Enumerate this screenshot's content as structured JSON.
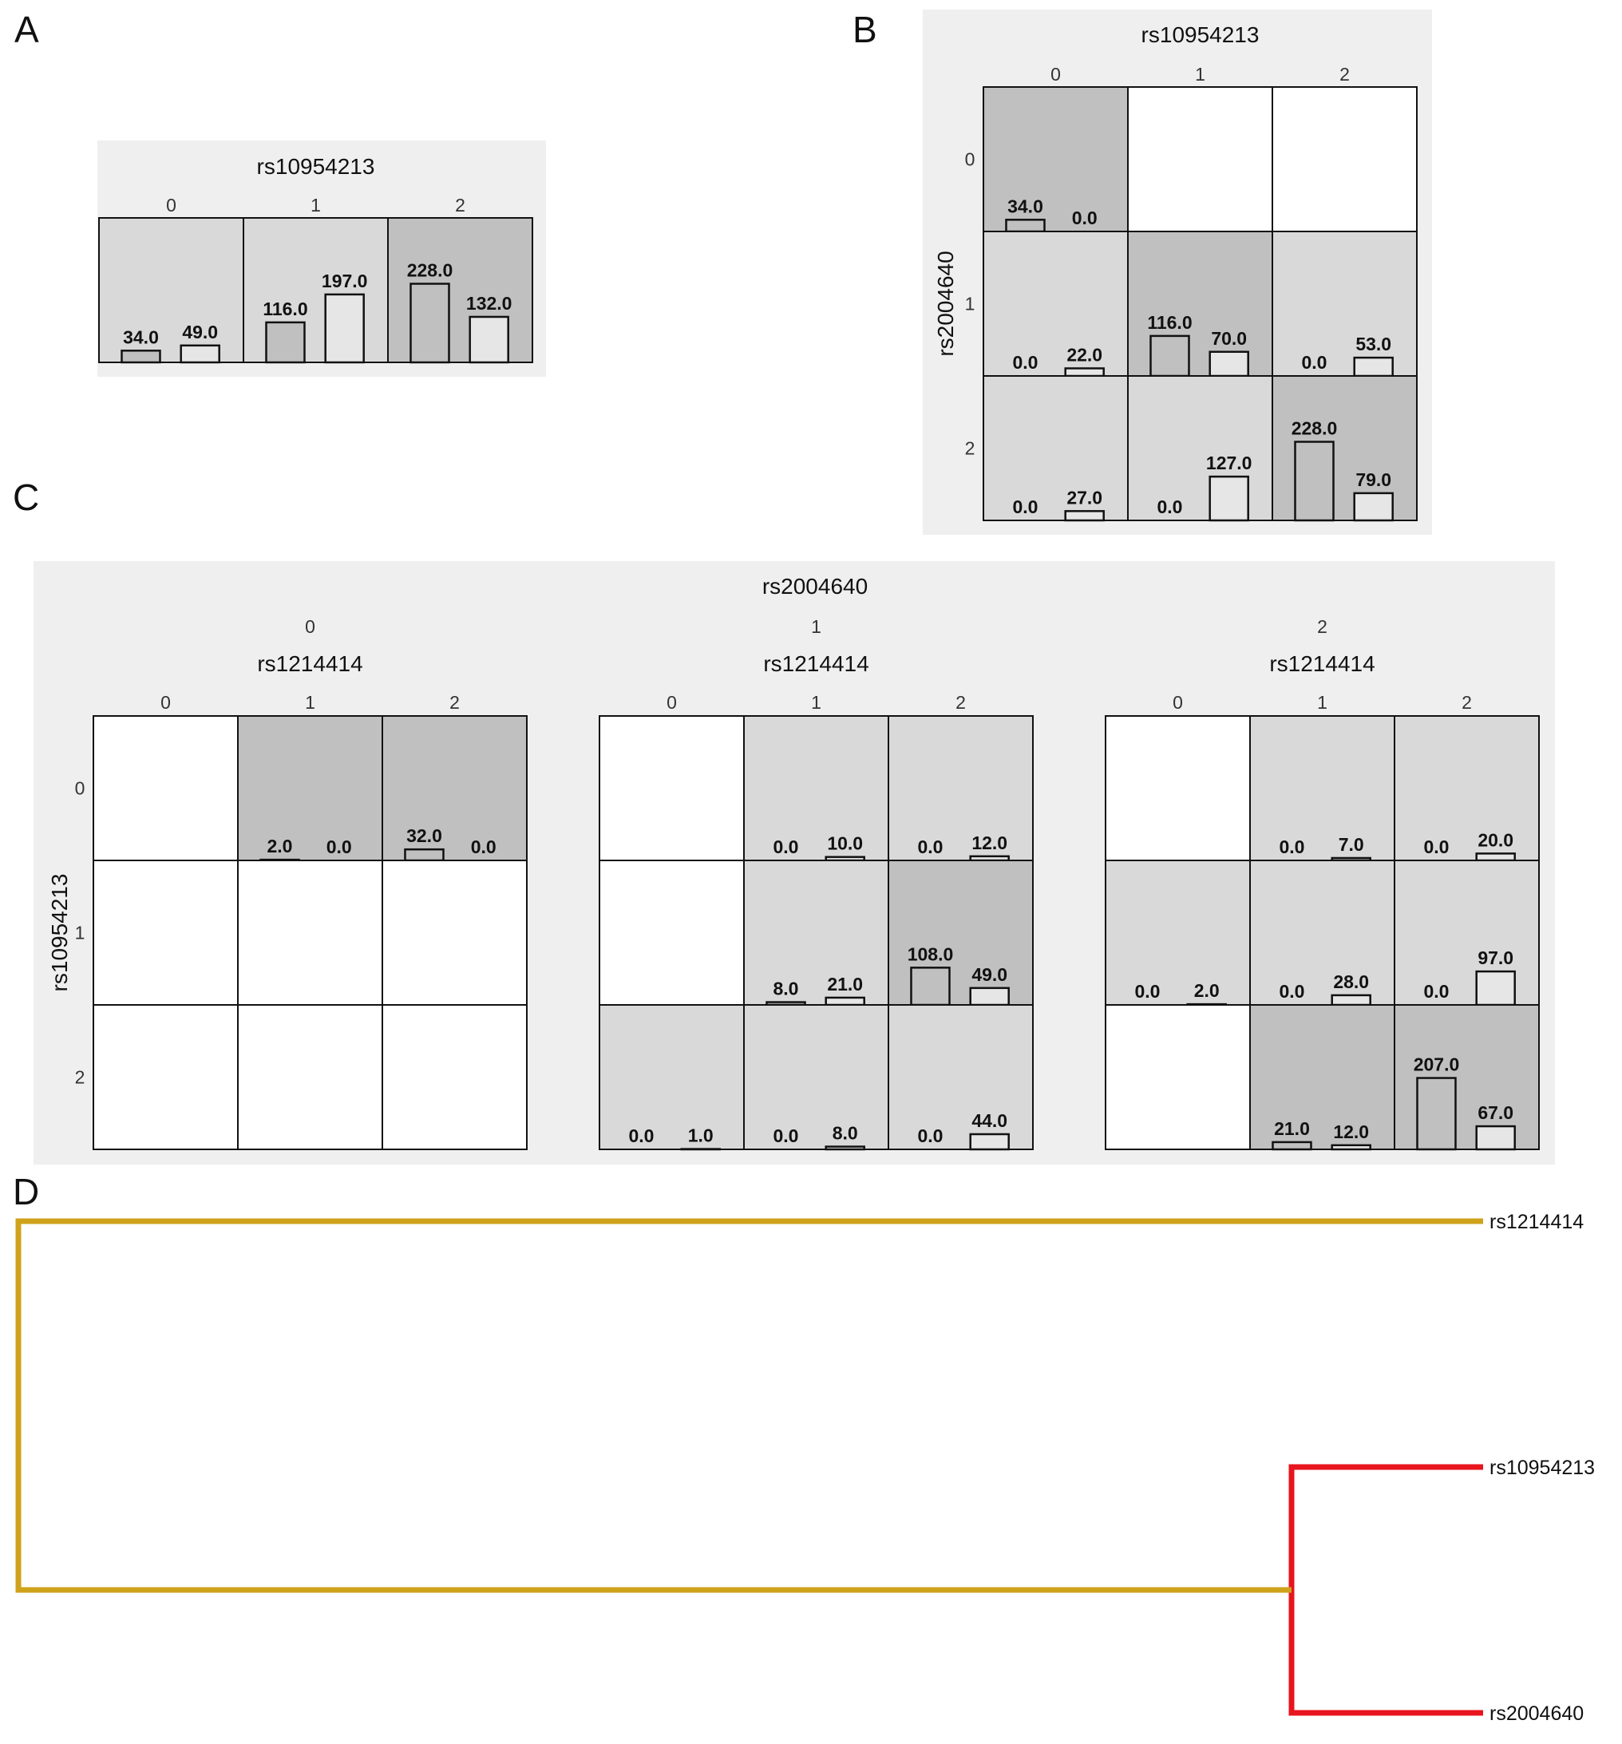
{
  "panels": {
    "a": "A",
    "b": "B",
    "c": "C",
    "d": "D"
  },
  "chart_data": [
    {
      "panel": "A",
      "type": "bar",
      "title": "rs10954213",
      "col_ticks": [
        "0",
        "1",
        "2"
      ],
      "cells": [
        {
          "col": 0,
          "shade": "low",
          "values": [
            34.0,
            49.0
          ],
          "labels": [
            "34.0",
            "49.0"
          ]
        },
        {
          "col": 1,
          "shade": "low",
          "values": [
            116.0,
            197.0
          ],
          "labels": [
            "116.0",
            "197.0"
          ]
        },
        {
          "col": 2,
          "shade": "high",
          "values": [
            228.0,
            132.0
          ],
          "labels": [
            "228.0",
            "132.0"
          ]
        }
      ]
    },
    {
      "panel": "B",
      "type": "bar",
      "title": "rs10954213",
      "ylabel": "rs2004640",
      "col_ticks": [
        "0",
        "1",
        "2"
      ],
      "row_ticks": [
        "0",
        "1",
        "2"
      ],
      "cells": [
        {
          "row": 0,
          "col": 0,
          "shade": "high",
          "values": [
            34.0,
            0.0
          ],
          "labels": [
            "34.0",
            "0.0"
          ]
        },
        {
          "row": 0,
          "col": 1,
          "shade": "empty"
        },
        {
          "row": 0,
          "col": 2,
          "shade": "empty"
        },
        {
          "row": 1,
          "col": 0,
          "shade": "low",
          "values": [
            0.0,
            22.0
          ],
          "labels": [
            "0.0",
            "22.0"
          ]
        },
        {
          "row": 1,
          "col": 1,
          "shade": "high",
          "values": [
            116.0,
            70.0
          ],
          "labels": [
            "116.0",
            "70.0"
          ]
        },
        {
          "row": 1,
          "col": 2,
          "shade": "low",
          "values": [
            0.0,
            53.0
          ],
          "labels": [
            "0.0",
            "53.0"
          ]
        },
        {
          "row": 2,
          "col": 0,
          "shade": "low",
          "values": [
            0.0,
            27.0
          ],
          "labels": [
            "0.0",
            "27.0"
          ]
        },
        {
          "row": 2,
          "col": 1,
          "shade": "low",
          "values": [
            0.0,
            127.0
          ],
          "labels": [
            "0.0",
            "127.0"
          ]
        },
        {
          "row": 2,
          "col": 2,
          "shade": "high",
          "values": [
            228.0,
            79.0
          ],
          "labels": [
            "228.0",
            "79.0"
          ]
        }
      ]
    },
    {
      "panel": "C",
      "type": "bar",
      "title": "rs2004640",
      "ylabel": "rs10954213",
      "outer_ticks": [
        "0",
        "1",
        "2"
      ],
      "sub_title": "rs1214414",
      "col_ticks": [
        "0",
        "1",
        "2"
      ],
      "row_ticks": [
        "0",
        "1",
        "2"
      ],
      "grids": [
        {
          "outer": "0",
          "cells": [
            {
              "row": 0,
              "col": 0,
              "shade": "empty"
            },
            {
              "row": 0,
              "col": 1,
              "shade": "high",
              "values": [
                2.0,
                0.0
              ],
              "labels": [
                "2.0",
                "0.0"
              ]
            },
            {
              "row": 0,
              "col": 2,
              "shade": "high",
              "values": [
                32.0,
                0.0
              ],
              "labels": [
                "32.0",
                "0.0"
              ]
            },
            {
              "row": 1,
              "col": 0,
              "shade": "empty"
            },
            {
              "row": 1,
              "col": 1,
              "shade": "empty"
            },
            {
              "row": 1,
              "col": 2,
              "shade": "empty"
            },
            {
              "row": 2,
              "col": 0,
              "shade": "empty"
            },
            {
              "row": 2,
              "col": 1,
              "shade": "empty"
            },
            {
              "row": 2,
              "col": 2,
              "shade": "empty"
            }
          ]
        },
        {
          "outer": "1",
          "cells": [
            {
              "row": 0,
              "col": 0,
              "shade": "empty"
            },
            {
              "row": 0,
              "col": 1,
              "shade": "low",
              "values": [
                0.0,
                10.0
              ],
              "labels": [
                "0.0",
                "10.0"
              ]
            },
            {
              "row": 0,
              "col": 2,
              "shade": "low",
              "values": [
                0.0,
                12.0
              ],
              "labels": [
                "0.0",
                "12.0"
              ]
            },
            {
              "row": 1,
              "col": 0,
              "shade": "empty"
            },
            {
              "row": 1,
              "col": 1,
              "shade": "low",
              "values": [
                8.0,
                21.0
              ],
              "labels": [
                "8.0",
                "21.0"
              ]
            },
            {
              "row": 1,
              "col": 2,
              "shade": "high",
              "values": [
                108.0,
                49.0
              ],
              "labels": [
                "108.0",
                "49.0"
              ]
            },
            {
              "row": 2,
              "col": 0,
              "shade": "low",
              "values": [
                0.0,
                1.0
              ],
              "labels": [
                "0.0",
                "1.0"
              ]
            },
            {
              "row": 2,
              "col": 1,
              "shade": "low",
              "values": [
                0.0,
                8.0
              ],
              "labels": [
                "0.0",
                "8.0"
              ]
            },
            {
              "row": 2,
              "col": 2,
              "shade": "low",
              "values": [
                0.0,
                44.0
              ],
              "labels": [
                "0.0",
                "44.0"
              ]
            }
          ]
        },
        {
          "outer": "2",
          "cells": [
            {
              "row": 0,
              "col": 0,
              "shade": "empty"
            },
            {
              "row": 0,
              "col": 1,
              "shade": "low",
              "values": [
                0.0,
                7.0
              ],
              "labels": [
                "0.0",
                "7.0"
              ]
            },
            {
              "row": 0,
              "col": 2,
              "shade": "low",
              "values": [
                0.0,
                20.0
              ],
              "labels": [
                "0.0",
                "20.0"
              ]
            },
            {
              "row": 1,
              "col": 0,
              "shade": "low",
              "values": [
                0.0,
                2.0
              ],
              "labels": [
                "0.0",
                "2.0"
              ]
            },
            {
              "row": 1,
              "col": 1,
              "shade": "low",
              "values": [
                0.0,
                28.0
              ],
              "labels": [
                "0.0",
                "28.0"
              ]
            },
            {
              "row": 1,
              "col": 2,
              "shade": "low",
              "values": [
                0.0,
                97.0
              ],
              "labels": [
                "0.0",
                "97.0"
              ]
            },
            {
              "row": 2,
              "col": 0,
              "shade": "empty"
            },
            {
              "row": 2,
              "col": 1,
              "shade": "high",
              "values": [
                21.0,
                12.0
              ],
              "labels": [
                "21.0",
                "12.0"
              ]
            },
            {
              "row": 2,
              "col": 2,
              "shade": "high",
              "values": [
                207.0,
                67.0
              ],
              "labels": [
                "207.0",
                "67.0"
              ]
            }
          ]
        }
      ]
    },
    {
      "panel": "D",
      "type": "dendrogram",
      "leaves": [
        "rs1214414",
        "rs10954213",
        "rs2004640"
      ],
      "merges": [
        {
          "join": [
            "rs10954213",
            "rs2004640"
          ],
          "color": "#e8141e"
        },
        {
          "join": [
            "rs1214414",
            "cluster(rs10954213,rs2004640)"
          ],
          "color": "#cfa21b"
        }
      ]
    }
  ],
  "colors": {
    "panel_bg": "#efefef",
    "cell_high": "#c0c0c0",
    "cell_low": "#d9d9d9",
    "cell_empty": "#ffffff",
    "bar_left": "#c0c0c0",
    "bar_right": "#e6e6e6",
    "line": "#111111"
  }
}
